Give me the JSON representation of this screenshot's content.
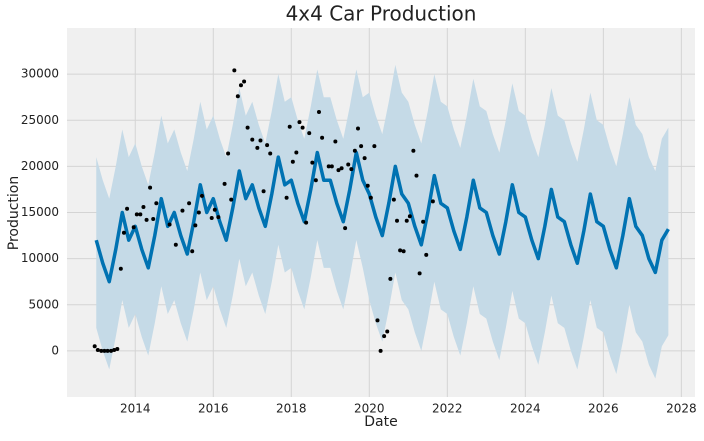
{
  "chart_data": {
    "type": "line",
    "title": "4x4 Car Production",
    "x_label": "Date",
    "y_label": "Production",
    "xlim": [
      2012.25,
      2028.35
    ],
    "xticks": [
      2014,
      2016,
      2018,
      2020,
      2022,
      2024,
      2026,
      2028
    ],
    "ylim": [
      -5000,
      35000
    ],
    "yticks": [
      0,
      5000,
      10000,
      15000,
      20000,
      25000,
      30000
    ],
    "grid": true,
    "forecast": {
      "color": "#0072b2",
      "band_color": "#c5dae7",
      "x": [
        2013,
        2013.167,
        2013.333,
        2013.5,
        2013.667,
        2013.833,
        2014,
        2014.167,
        2014.333,
        2014.5,
        2014.667,
        2014.833,
        2015,
        2015.167,
        2015.333,
        2015.5,
        2015.667,
        2015.833,
        2016,
        2016.167,
        2016.333,
        2016.5,
        2016.667,
        2016.833,
        2017,
        2017.167,
        2017.333,
        2017.5,
        2017.667,
        2017.833,
        2018,
        2018.167,
        2018.333,
        2018.5,
        2018.667,
        2018.833,
        2019,
        2019.167,
        2019.333,
        2019.5,
        2019.667,
        2019.833,
        2020,
        2020.167,
        2020.333,
        2020.5,
        2020.667,
        2020.833,
        2021,
        2021.167,
        2021.333,
        2021.5,
        2021.667,
        2021.833,
        2022,
        2022.167,
        2022.333,
        2022.5,
        2022.667,
        2022.833,
        2023,
        2023.167,
        2023.333,
        2023.5,
        2023.667,
        2023.833,
        2024,
        2024.167,
        2024.333,
        2024.5,
        2024.667,
        2024.833,
        2025,
        2025.167,
        2025.333,
        2025.5,
        2025.667,
        2025.833,
        2026,
        2026.167,
        2026.333,
        2026.5,
        2026.667,
        2026.833,
        2027,
        2027.167,
        2027.333,
        2027.5,
        2027.667
      ],
      "values": [
        12000,
        9500,
        7500,
        11000,
        15000,
        12000,
        13500,
        11000,
        9000,
        12500,
        16500,
        13500,
        15000,
        12500,
        10500,
        14000,
        18000,
        15000,
        16500,
        14000,
        12000,
        15500,
        19500,
        16500,
        18000,
        15500,
        13500,
        17000,
        21000,
        18000,
        18500,
        16000,
        14000,
        17500,
        21500,
        18500,
        18500,
        16000,
        14000,
        17500,
        21500,
        18500,
        17000,
        14500,
        12500,
        16000,
        20000,
        17000,
        16000,
        13500,
        11500,
        15000,
        19000,
        16000,
        15500,
        13000,
        11000,
        14500,
        18500,
        15500,
        15000,
        12500,
        10500,
        14000,
        18000,
        15000,
        14500,
        12000,
        10000,
        13500,
        17500,
        14500,
        14000,
        11500,
        9500,
        13000,
        17000,
        14000,
        13500,
        11000,
        9000,
        12500,
        16500,
        13500,
        12500,
        10000,
        8500,
        12000,
        13200
      ],
      "upper": [
        21000,
        18500,
        16500,
        20000,
        24000,
        21000,
        22500,
        20000,
        18000,
        21500,
        25500,
        22500,
        24000,
        21500,
        19500,
        23000,
        27000,
        24000,
        25500,
        23000,
        21000,
        24500,
        28500,
        25500,
        27000,
        24500,
        22500,
        26000,
        30000,
        27000,
        27500,
        25000,
        23000,
        26500,
        30500,
        27500,
        27500,
        25000,
        23000,
        26500,
        30500,
        27500,
        28000,
        25500,
        23500,
        27000,
        31000,
        28000,
        27000,
        24500,
        22500,
        26000,
        30000,
        27000,
        26500,
        24000,
        22000,
        25500,
        29500,
        26500,
        26000,
        23500,
        21500,
        25000,
        29000,
        26000,
        25500,
        23000,
        21000,
        24500,
        28500,
        25500,
        25000,
        22500,
        20500,
        24000,
        28000,
        25000,
        24500,
        22000,
        20000,
        23500,
        27500,
        24500,
        23500,
        21000,
        19500,
        23000,
        24200
      ],
      "lower": [
        2500,
        0,
        -2000,
        1500,
        5500,
        2500,
        4000,
        1500,
        -500,
        3000,
        7000,
        4000,
        5500,
        3000,
        1000,
        4500,
        8500,
        5500,
        7000,
        4500,
        2500,
        6000,
        10000,
        7000,
        8500,
        6000,
        4000,
        7500,
        11500,
        8500,
        9000,
        6500,
        4500,
        8000,
        12000,
        9000,
        9000,
        6500,
        4500,
        8000,
        12000,
        9000,
        5500,
        3000,
        1000,
        4500,
        8500,
        5500,
        4500,
        2000,
        0,
        3500,
        7500,
        4500,
        4000,
        1500,
        -500,
        3000,
        7000,
        4000,
        3500,
        1000,
        -1000,
        2500,
        6500,
        3500,
        3000,
        500,
        -1500,
        2000,
        6000,
        3000,
        2500,
        0,
        -2000,
        1500,
        5500,
        2500,
        2000,
        -500,
        -2500,
        1000,
        5000,
        2000,
        1000,
        -1500,
        -3000,
        500,
        1700
      ]
    },
    "observed": {
      "color": "#000000",
      "x": [
        2012.96,
        2013.04,
        2013.13,
        2013.21,
        2013.29,
        2013.38,
        2013.46,
        2013.54,
        2013.63,
        2013.71,
        2013.79,
        2013.96,
        2014.04,
        2014.13,
        2014.21,
        2014.29,
        2014.38,
        2014.46,
        2014.54,
        2014.88,
        2015.04,
        2015.21,
        2015.38,
        2015.46,
        2015.54,
        2015.63,
        2015.71,
        2015.96,
        2016.04,
        2016.13,
        2016.29,
        2016.38,
        2016.46,
        2016.54,
        2016.63,
        2016.71,
        2016.79,
        2016.88,
        2017.0,
        2017.13,
        2017.21,
        2017.29,
        2017.38,
        2017.46,
        2017.88,
        2017.96,
        2018.04,
        2018.13,
        2018.21,
        2018.29,
        2018.38,
        2018.46,
        2018.54,
        2018.63,
        2018.71,
        2018.79,
        2018.96,
        2019.04,
        2019.13,
        2019.21,
        2019.29,
        2019.38,
        2019.46,
        2019.54,
        2019.63,
        2019.71,
        2019.79,
        2019.88,
        2019.96,
        2020.04,
        2020.13,
        2020.21,
        2020.29,
        2020.38,
        2020.46,
        2020.54,
        2020.63,
        2020.71,
        2020.79,
        2020.88,
        2020.96,
        2021.04,
        2021.13,
        2021.21,
        2021.29,
        2021.38,
        2021.46,
        2021.63
      ],
      "values": [
        500,
        100,
        0,
        0,
        0,
        0,
        100,
        200,
        8900,
        12800,
        15400,
        13400,
        14800,
        14800,
        15600,
        14200,
        17700,
        14300,
        16000,
        13700,
        11500,
        15200,
        16000,
        10800,
        13600,
        15000,
        16800,
        14400,
        15300,
        14500,
        18100,
        21400,
        16400,
        30400,
        27600,
        28800,
        29200,
        24200,
        22900,
        22000,
        22800,
        17300,
        22300,
        21400,
        16600,
        24300,
        20500,
        21500,
        24800,
        24200,
        13900,
        23600,
        20400,
        18500,
        25900,
        23100,
        20000,
        20000,
        22700,
        19600,
        19800,
        13300,
        20200,
        19700,
        21700,
        24100,
        22200,
        20900,
        17900,
        16600,
        22200,
        3300,
        0,
        1600,
        2100,
        7800,
        16400,
        14100,
        10900,
        10800,
        14100,
        14600,
        21700,
        19000,
        8400,
        14000,
        10400,
        16200
      ]
    }
  }
}
